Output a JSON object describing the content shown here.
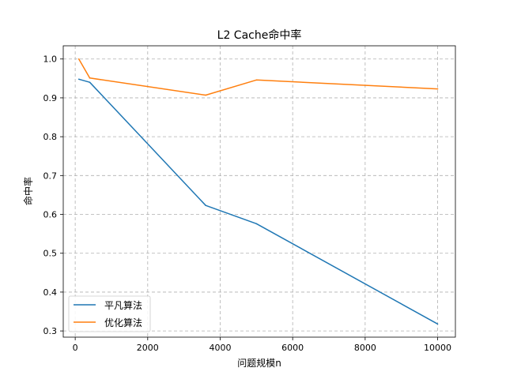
{
  "chart_data": {
    "type": "line",
    "title": "L2 Cache命中率",
    "xlabel": "问题规模n",
    "ylabel": "命中率",
    "xlim": [
      -330,
      10490
    ],
    "ylim": [
      0.284,
      1.034
    ],
    "xticks": [
      0,
      2000,
      4000,
      6000,
      8000,
      10000
    ],
    "xtick_labels": [
      "0",
      "2000",
      "4000",
      "6000",
      "8000",
      "10000"
    ],
    "yticks": [
      0.3,
      0.4,
      0.5,
      0.6,
      0.7,
      0.8,
      0.9,
      1.0
    ],
    "ytick_labels": [
      "0.3",
      "0.4",
      "0.5",
      "0.6",
      "0.7",
      "0.8",
      "0.9",
      "1.0"
    ],
    "grid": true,
    "legend_position": "lower-left",
    "series": [
      {
        "name": "平凡算法",
        "color": "#1f77b4",
        "x": [
          100,
          400,
          3600,
          5000,
          10000
        ],
        "y": [
          0.948,
          0.94,
          0.623,
          0.576,
          0.318
        ]
      },
      {
        "name": "优化算法",
        "color": "#ff7f0e",
        "x": [
          100,
          400,
          3600,
          5000,
          10000
        ],
        "y": [
          1.0,
          0.951,
          0.907,
          0.946,
          0.923
        ]
      }
    ]
  }
}
